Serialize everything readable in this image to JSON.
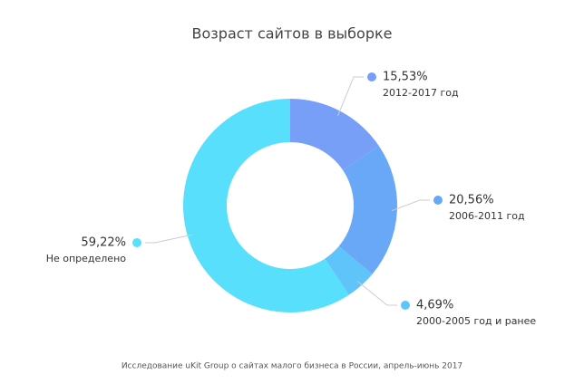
{
  "chart_data": {
    "type": "pie",
    "title": "Возраст сайтов в выборке",
    "categories": [
      "2012-2017 год",
      "2006-2011 год",
      "2000-2005 год и ранее",
      "Не определено"
    ],
    "values": [
      15.53,
      20.56,
      4.69,
      59.22
    ],
    "value_labels": [
      "15,53%",
      "20,56%",
      "4,69%",
      "59,22%"
    ],
    "colors": [
      "#789ff8",
      "#68a8f7",
      "#5ec4f9",
      "#58dffb"
    ],
    "note": "Исследование uKit Group о сайтах малого бизнеса в России, апрель-июнь 2017"
  }
}
